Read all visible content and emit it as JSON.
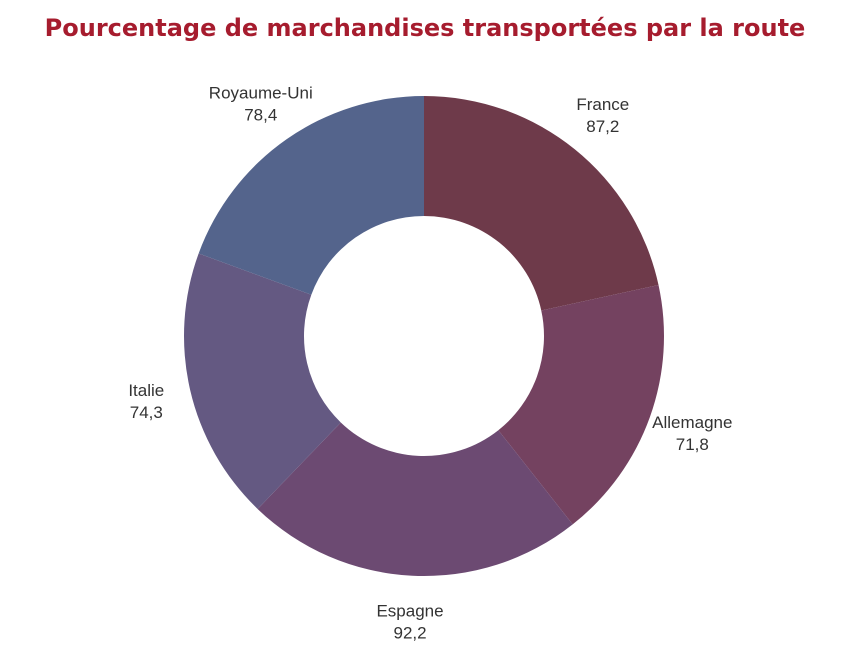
{
  "chart_data": {
    "type": "pie",
    "title": "Pourcentage de marchandises transportées par la route",
    "donut": true,
    "categories": [
      "France",
      "Allemagne",
      "Espagne",
      "Italie",
      "Royaume-Uni"
    ],
    "values": [
      87.2,
      71.8,
      92.2,
      74.3,
      78.4
    ],
    "value_labels": [
      "87,2",
      "71,8",
      "92,2",
      "74,3",
      "78,4"
    ],
    "colors": [
      "#6e3a4a",
      "#744260",
      "#6c4a72",
      "#645982",
      "#54648c"
    ],
    "title_color": "#a61c2e",
    "legend": "none"
  }
}
